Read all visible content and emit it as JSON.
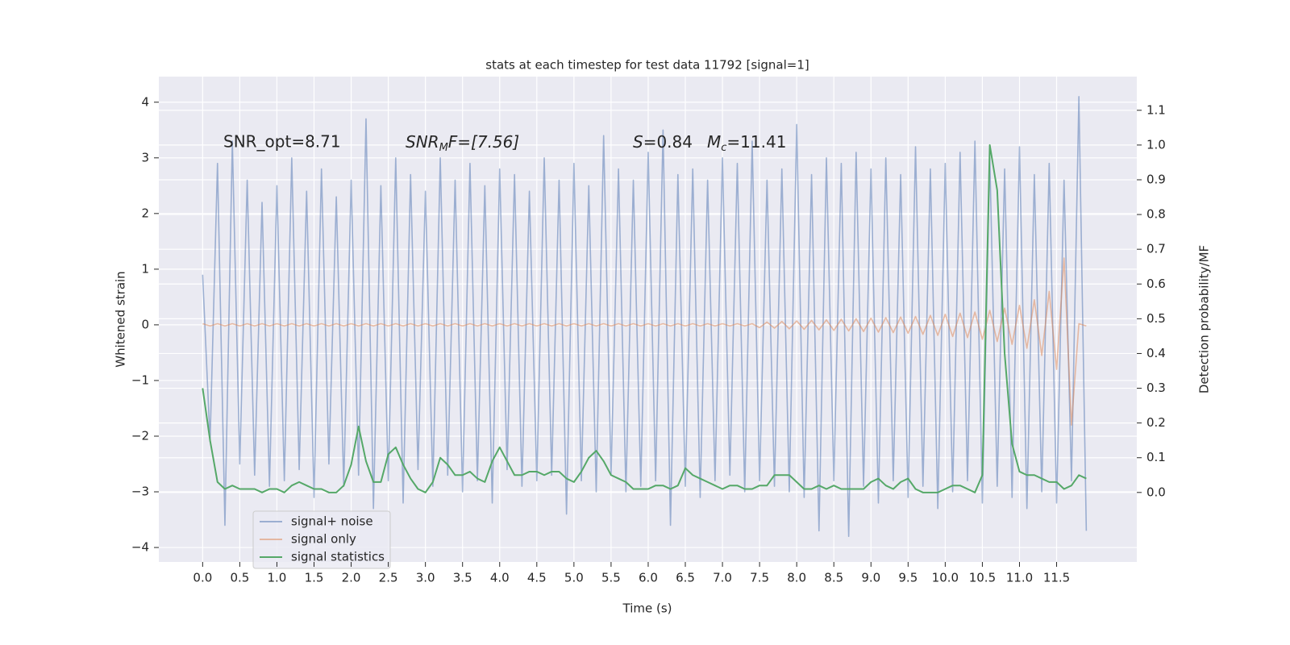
{
  "chart_data": {
    "type": "line",
    "title": "stats at each timestep for test data 11792 [signal=1]",
    "xlabel": "Time (s)",
    "ylabel": "Whitened strain",
    "y2label": "Detection probability/MF",
    "annotations": [
      [
        "SNR_opt=8.71"
      ],
      [
        "SNR",
        "M",
        "F=[7.56]"
      ],
      [
        "S",
        "=0.84",
        "M",
        "c",
        "=11.41"
      ]
    ],
    "grid": true,
    "legend": "lower left",
    "xlim": [
      -0.59,
      12.58
    ],
    "ylim": [
      -4.26,
      4.46
    ],
    "y2lim": [
      -0.2,
      1.197
    ],
    "xticks": [
      {
        "value": 0,
        "label": "0.0"
      },
      0.5,
      {
        "value": 1,
        "label": "1.0"
      },
      1.5,
      {
        "value": 2,
        "label": "2.0"
      },
      2.5,
      {
        "value": 3,
        "label": "3.0"
      },
      3.5,
      {
        "value": 4,
        "label": "4.0"
      },
      4.5,
      {
        "value": 5,
        "label": "5.0"
      },
      5.5,
      {
        "value": 6,
        "label": "6.0"
      },
      6.5,
      {
        "value": 7,
        "label": "7.0"
      },
      7.5,
      {
        "value": 8,
        "label": "8.0"
      },
      8.5,
      {
        "value": 9,
        "label": "9.0"
      },
      9.5,
      {
        "value": 10,
        "label": "10.0"
      },
      10.5,
      {
        "value": 11,
        "label": "11.0"
      },
      11.5
    ],
    "yticks": [
      {
        "value": -4,
        "label": "−4"
      },
      {
        "value": -3,
        "label": "−3"
      },
      {
        "value": -2,
        "label": "−2"
      },
      {
        "value": -1,
        "label": "−1"
      },
      0,
      1,
      2,
      3,
      4
    ],
    "y2ticks": [
      {
        "value": 0,
        "label": "0.0"
      },
      0.1,
      0.2,
      0.3,
      0.4,
      0.5,
      0.6,
      0.7,
      0.8,
      0.9,
      {
        "value": 1,
        "label": "1.0"
      },
      1.1
    ],
    "x": [
      0.0,
      0.1,
      0.2,
      0.3,
      0.4,
      0.5,
      0.6,
      0.7,
      0.8,
      0.9,
      1.0,
      1.1,
      1.2,
      1.3,
      1.4,
      1.5,
      1.6,
      1.7,
      1.8,
      1.9,
      2.0,
      2.1,
      2.2,
      2.3,
      2.4,
      2.5,
      2.6,
      2.7,
      2.8,
      2.9,
      3.0,
      3.1,
      3.2,
      3.3,
      3.4,
      3.5,
      3.6,
      3.7,
      3.8,
      3.9,
      4.0,
      4.1,
      4.2,
      4.3,
      4.4,
      4.5,
      4.6,
      4.7,
      4.8,
      4.9,
      5.0,
      5.1,
      5.2,
      5.3,
      5.4,
      5.5,
      5.6,
      5.7,
      5.8,
      5.9,
      6.0,
      6.1,
      6.2,
      6.3,
      6.4,
      6.5,
      6.6,
      6.7,
      6.8,
      6.9,
      7.0,
      7.1,
      7.2,
      7.3,
      7.4,
      7.5,
      7.6,
      7.7,
      7.8,
      7.9,
      8.0,
      8.1,
      8.2,
      8.3,
      8.4,
      8.5,
      8.6,
      8.7,
      8.8,
      8.9,
      9.0,
      9.1,
      9.2,
      9.3,
      9.4,
      9.5,
      9.6,
      9.7,
      9.8,
      9.9,
      10.0,
      10.1,
      10.2,
      10.3,
      10.4,
      10.5,
      10.6,
      10.7,
      10.8,
      10.9,
      11.0,
      11.1,
      11.2,
      11.3,
      11.4,
      11.5,
      11.6,
      11.7,
      11.8,
      11.9
    ],
    "series": [
      {
        "name": "signal+ noise",
        "color": "#4c72b0",
        "opacity": 0.5,
        "values": [
          0.9,
          -2.1,
          2.9,
          -3.6,
          3.3,
          -2.5,
          2.6,
          -2.7,
          2.2,
          -2.9,
          2.5,
          -2.8,
          3.0,
          -2.6,
          2.4,
          -3.1,
          2.8,
          -2.5,
          2.3,
          -2.9,
          2.6,
          -2.7,
          3.7,
          -3.3,
          2.5,
          -2.8,
          3.0,
          -3.2,
          2.7,
          -2.6,
          2.4,
          -2.9,
          3.0,
          -2.7,
          2.6,
          -3.0,
          2.9,
          -2.8,
          2.5,
          -3.2,
          2.8,
          -2.6,
          2.7,
          -2.9,
          2.4,
          -2.8,
          3.0,
          -2.7,
          2.6,
          -3.4,
          2.9,
          -2.8,
          2.5,
          -3.0,
          3.4,
          -2.7,
          2.8,
          -3.0,
          2.6,
          -2.9,
          3.1,
          -2.8,
          3.5,
          -3.6,
          2.7,
          -2.9,
          2.8,
          -3.1,
          2.6,
          -2.8,
          3.0,
          -2.7,
          2.9,
          -3.0,
          3.3,
          -2.8,
          2.6,
          -2.9,
          2.8,
          -3.0,
          3.6,
          -3.1,
          2.7,
          -3.7,
          3.0,
          -2.8,
          2.9,
          -3.8,
          3.1,
          -2.9,
          2.8,
          -3.2,
          3.0,
          -2.8,
          2.7,
          -3.1,
          3.2,
          -2.9,
          2.8,
          -3.3,
          2.9,
          -3.0,
          3.1,
          -2.8,
          3.3,
          -3.2,
          3.0,
          -2.9,
          2.8,
          -3.1,
          3.2,
          -3.3,
          2.7,
          -3.0,
          2.9,
          -3.2,
          2.6,
          -2.8,
          4.1,
          -3.7
        ]
      },
      {
        "name": "signal only",
        "color": "#dd8452",
        "opacity": 0.5,
        "values": [
          0.02,
          -0.02,
          0.02,
          -0.02,
          0.02,
          -0.02,
          0.02,
          -0.02,
          0.02,
          -0.02,
          0.02,
          -0.02,
          0.02,
          -0.02,
          0.02,
          -0.02,
          0.02,
          -0.02,
          0.02,
          -0.02,
          0.02,
          -0.02,
          0.02,
          -0.02,
          0.02,
          -0.02,
          0.02,
          -0.02,
          0.02,
          -0.02,
          0.02,
          -0.02,
          0.02,
          -0.02,
          0.02,
          -0.02,
          0.02,
          -0.02,
          0.02,
          -0.02,
          0.02,
          -0.02,
          0.02,
          -0.02,
          0.02,
          -0.02,
          0.02,
          -0.02,
          0.02,
          -0.02,
          0.02,
          -0.02,
          0.02,
          -0.02,
          0.02,
          -0.02,
          0.02,
          -0.02,
          0.02,
          -0.02,
          0.02,
          -0.02,
          0.02,
          -0.02,
          0.02,
          -0.02,
          0.02,
          -0.02,
          0.02,
          -0.02,
          0.02,
          -0.02,
          0.02,
          -0.02,
          0.02,
          -0.05,
          0.05,
          -0.06,
          0.06,
          -0.07,
          0.07,
          -0.08,
          0.08,
          -0.09,
          0.09,
          -0.1,
          0.1,
          -0.11,
          0.11,
          -0.12,
          0.12,
          -0.13,
          0.13,
          -0.14,
          0.14,
          -0.15,
          0.15,
          -0.17,
          0.17,
          -0.19,
          0.19,
          -0.21,
          0.21,
          -0.23,
          0.23,
          -0.26,
          0.26,
          -0.3,
          0.3,
          -0.35,
          0.35,
          -0.42,
          0.45,
          -0.55,
          0.6,
          -0.8,
          1.2,
          -1.8,
          0.02,
          -0.02
        ]
      },
      {
        "name": "signal statistics",
        "color": "#55a868",
        "opacity": 1,
        "axis": "y2",
        "values": [
          0.3,
          0.15,
          0.03,
          0.01,
          0.02,
          0.01,
          0.01,
          0.01,
          0.0,
          0.01,
          0.01,
          0.0,
          0.02,
          0.03,
          0.02,
          0.01,
          0.01,
          0.0,
          0.0,
          0.02,
          0.08,
          0.19,
          0.09,
          0.03,
          0.03,
          0.11,
          0.13,
          0.08,
          0.04,
          0.01,
          0.0,
          0.03,
          0.1,
          0.08,
          0.05,
          0.05,
          0.06,
          0.04,
          0.03,
          0.09,
          0.13,
          0.09,
          0.05,
          0.05,
          0.06,
          0.06,
          0.05,
          0.06,
          0.06,
          0.04,
          0.03,
          0.06,
          0.1,
          0.12,
          0.09,
          0.05,
          0.04,
          0.03,
          0.01,
          0.01,
          0.01,
          0.02,
          0.02,
          0.01,
          0.02,
          0.07,
          0.05,
          0.04,
          0.03,
          0.02,
          0.01,
          0.02,
          0.02,
          0.01,
          0.01,
          0.02,
          0.02,
          0.05,
          0.05,
          0.05,
          0.03,
          0.01,
          0.01,
          0.02,
          0.01,
          0.02,
          0.01,
          0.01,
          0.01,
          0.01,
          0.03,
          0.04,
          0.02,
          0.01,
          0.03,
          0.04,
          0.01,
          0.0,
          0.0,
          0.0,
          0.01,
          0.02,
          0.02,
          0.01,
          0.0,
          0.05,
          1.0,
          0.87,
          0.4,
          0.14,
          0.06,
          0.05,
          0.05,
          0.04,
          0.03,
          0.03,
          0.01,
          0.02,
          0.05,
          0.04
        ]
      }
    ]
  }
}
